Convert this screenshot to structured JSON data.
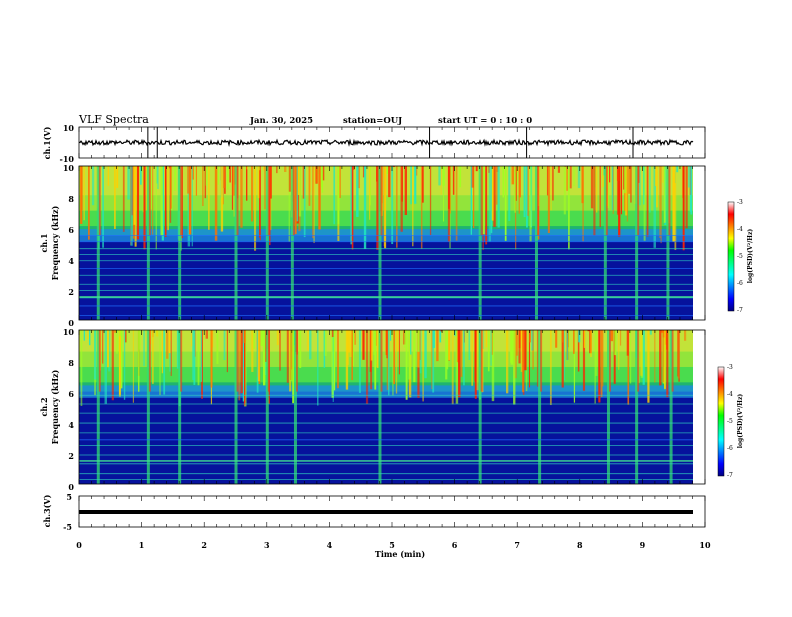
{
  "header": {
    "title": "VLF Spectra",
    "date": "Jan. 30, 2025",
    "station": "station=OUJ",
    "start": "start  UT =   0 : 10 : 0"
  },
  "colormap": {
    "stops": [
      "#000080",
      "#0000ff",
      "#0080ff",
      "#00ffff",
      "#00ff80",
      "#80ff00",
      "#ffff00",
      "#ff8000",
      "#ff0000",
      "#ffffff"
    ],
    "waveform": "#000000"
  },
  "chart_data": [
    {
      "type": "line",
      "name": "ch1-waveform",
      "ylabel": "ch.1(V)",
      "ylim": [
        -10,
        10
      ],
      "yticks": [
        "10",
        "-10"
      ],
      "xlim": [
        0,
        10
      ],
      "approx_level": 0,
      "approx_noise_amplitude": 1.5
    },
    {
      "type": "heatmap",
      "name": "ch1-spectrogram",
      "ylabel_line1": "ch.1",
      "ylabel_line2": "Frequency (kHz)",
      "ylim": [
        0,
        10
      ],
      "yticks": [
        "0",
        "2",
        "4",
        "6",
        "8",
        "10"
      ],
      "xlim": [
        0,
        9.85
      ],
      "cbar_label": "log(PSD)(V²/Hz)",
      "cbar_range": [
        -7,
        -3
      ],
      "cbar_ticks": [
        "-3",
        "-4",
        "-5",
        "-6",
        "-7"
      ],
      "noise_floor_khz": 5.5,
      "approx_burst_minutes": [
        0.3,
        1.1,
        1.6,
        2.5,
        3.0,
        3.4,
        4.8,
        6.4,
        7.3,
        8.4,
        8.9,
        9.4
      ]
    },
    {
      "type": "heatmap",
      "name": "ch2-spectrogram",
      "ylabel_line1": "ch.2",
      "ylabel_line2": "Frequency (kHz)",
      "ylim": [
        0,
        10
      ],
      "yticks": [
        "0",
        "2",
        "4",
        "6",
        "8",
        "10"
      ],
      "xlim": [
        0,
        9.85
      ],
      "cbar_label": "log(PSD)(V²/Hz)",
      "cbar_range": [
        -7,
        -3
      ],
      "cbar_ticks": [
        "-3",
        "-4",
        "-5",
        "-6",
        "-7"
      ],
      "noise_floor_khz": 6.0,
      "approx_burst_minutes": [
        0.3,
        1.1,
        1.6,
        2.5,
        3.0,
        3.45,
        4.8,
        6.4,
        7.35,
        8.45,
        8.9,
        9.45
      ]
    },
    {
      "type": "line",
      "name": "ch3-waveform",
      "ylabel": "ch.3(V)",
      "ylim": [
        -5,
        5
      ],
      "yticks": [
        "5",
        "-5"
      ],
      "xlim": [
        0,
        9.85
      ],
      "approx_level": 0
    }
  ],
  "xaxis": {
    "label": "Time (min)",
    "ticks": [
      "0",
      "1",
      "2",
      "3",
      "4",
      "5",
      "6",
      "7",
      "8",
      "9",
      "10"
    ],
    "range": [
      0,
      10
    ]
  }
}
